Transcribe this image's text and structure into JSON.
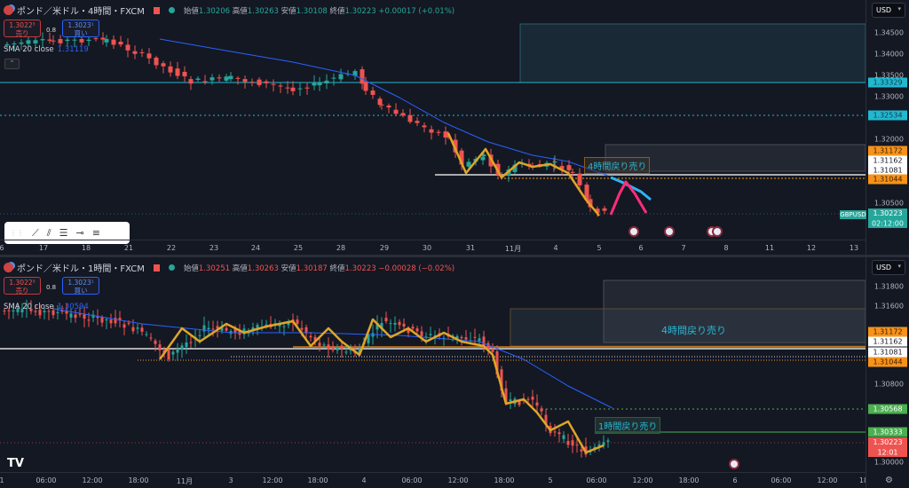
{
  "top": {
    "symbol": "ポンド／米ドル・4時間・FXCM",
    "ohlc": {
      "open_label": "始値",
      "open": "1.30206",
      "high_label": "高値",
      "high": "1.30263",
      "low_label": "安値",
      "low": "1.30108",
      "close_label": "終値",
      "close": "1.30223",
      "change": "+0.00017 (+0.01%)"
    },
    "sell": {
      "price": "1.3022³",
      "label": "売り"
    },
    "buy": {
      "price": "1.3023¹",
      "label": "買い"
    },
    "spread": "0.8",
    "sma": {
      "label": "SMA 20 close",
      "value": "1.31119"
    },
    "currency": "USD",
    "price_ticks": [
      "1.34500",
      "1.34000",
      "1.33500",
      "1.33000",
      "1.32000",
      "1.30500"
    ],
    "price_tags": [
      {
        "value": "1.33329",
        "bg": "#22b8cf",
        "fg": "#0d3b4a"
      },
      {
        "value": "1.32534",
        "bg": "#22b8cf",
        "fg": "#0d3b4a"
      },
      {
        "value": "1.31172",
        "bg": "#f7931a",
        "fg": "#3a1f00"
      },
      {
        "value": "1.31162",
        "bg": "#ffffff",
        "fg": "#131722"
      },
      {
        "value": "1.31081",
        "bg": "#ffffff",
        "fg": "#131722"
      },
      {
        "value": "1.31044",
        "bg": "#f7931a",
        "fg": "#3a1f00"
      }
    ],
    "symbol_tag": "GBPUSD",
    "last_price": "1.30223",
    "countdown": "02:12:00",
    "zone_label": "4時間戻り売り",
    "x_labels": [
      "6",
      "17",
      "18",
      "21",
      "22",
      "23",
      "24",
      "25",
      "28",
      "29",
      "30",
      "31",
      "11月",
      "4",
      "5",
      "6",
      "7",
      "8",
      "11",
      "12",
      "13"
    ]
  },
  "bottom": {
    "symbol": "ポンド／米ドル・1時間・FXCM",
    "ohlc": {
      "open_label": "始値",
      "open": "1.30251",
      "high_label": "高値",
      "high": "1.30263",
      "low_label": "安値",
      "low": "1.30187",
      "close_label": "終値",
      "close": "1.30223",
      "change": "−0.00028 (−0.02%)"
    },
    "sell": {
      "price": "1.3022³",
      "label": "売り"
    },
    "buy": {
      "price": "1.3023¹",
      "label": "買い"
    },
    "spread": "0.8",
    "sma": {
      "label": "SMA 20 close",
      "value": "1.30594"
    },
    "currency": "USD",
    "price_ticks": [
      "1.31800",
      "1.31600",
      "1.30800",
      "1.30000"
    ],
    "price_tags": [
      {
        "value": "1.31172",
        "bg": "#f7931a",
        "fg": "#3a1f00"
      },
      {
        "value": "1.31162",
        "bg": "#ffffff",
        "fg": "#131722"
      },
      {
        "value": "1.31081",
        "bg": "#ffffff",
        "fg": "#131722"
      },
      {
        "value": "1.31044",
        "bg": "#f7931a",
        "fg": "#3a1f00"
      },
      {
        "value": "1.30568",
        "bg": "#4caf50",
        "fg": "#ffffff"
      },
      {
        "value": "1.30333",
        "bg": "#4caf50",
        "fg": "#ffffff"
      }
    ],
    "last_price": "1.30223",
    "countdown": "12:01",
    "zone_label_4h": "4時間戻り売り",
    "zone_label_1h": "1時間戻り売り",
    "x_labels": [
      "1",
      "06:00",
      "12:00",
      "18:00",
      "11月",
      "3",
      "12:00",
      "18:00",
      "4",
      "06:00",
      "12:00",
      "18:00",
      "5",
      "06:00",
      "12:00",
      "18:00",
      "6",
      "06:00",
      "12:00",
      "18"
    ]
  },
  "colors": {
    "up": "#26a69a",
    "down": "#ef5350",
    "sma": "#2962ff",
    "zigzag": "#e0a526"
  },
  "drawing_tools": [
    "trend-line",
    "parallel-channel",
    "fib-retracement",
    "horizontal-ray",
    "horizontal-lines"
  ]
}
